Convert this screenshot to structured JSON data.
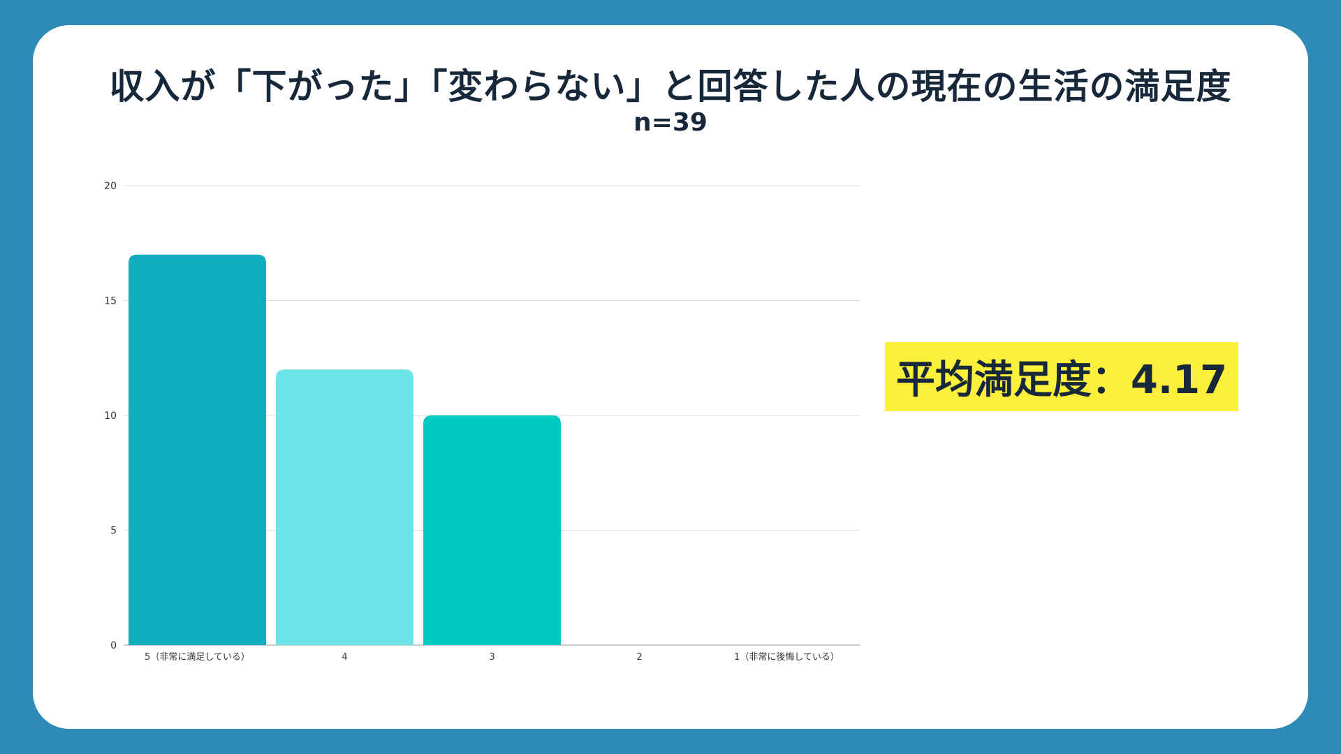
{
  "title": "収入が「下がった」「変わらない」と回答した人の現在の生活の満足度",
  "subtitle": "n=39",
  "average_label": "平均満足度：4.17",
  "colors": {
    "background": "#2e8bb8",
    "card": "#ffffff",
    "highlight": "#fdf03a",
    "text": "#17283b"
  },
  "chart_data": {
    "type": "bar",
    "categories": [
      "5（非常に満足している）",
      "4",
      "3",
      "2",
      "1（非常に後悔している）"
    ],
    "values": [
      17,
      12,
      10,
      0,
      0
    ],
    "bar_colors": [
      "#11adbf",
      "#6ce4e8",
      "#00cbc2",
      "#00cbc2",
      "#00cbc2"
    ],
    "yticks": [
      0,
      5,
      10,
      15,
      20
    ],
    "ylim": [
      0,
      20
    ],
    "grid": true,
    "xlabel": "",
    "ylabel": ""
  }
}
